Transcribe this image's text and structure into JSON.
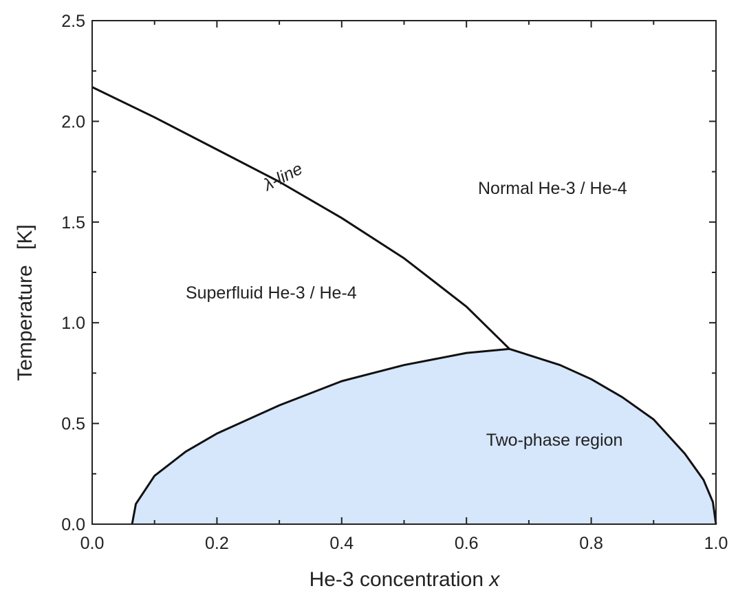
{
  "chart_data": {
    "type": "line",
    "xlabel": "He-3 concentration",
    "xlabel_var": "x",
    "ylabel": "Temperature",
    "ylabel_unit": "[K]",
    "xlim": [
      0.0,
      1.0
    ],
    "ylim": [
      0.0,
      2.5
    ],
    "x_ticks": [
      "0.0",
      "0.2",
      "0.4",
      "0.6",
      "0.8",
      "1.0"
    ],
    "y_ticks": [
      "0.0",
      "0.5",
      "1.0",
      "1.5",
      "2.0",
      "2.5"
    ],
    "grid": false,
    "colors": {
      "two_phase_fill": "#d6e6fb",
      "line": "#111111"
    },
    "series": [
      {
        "name": "λ-line",
        "x": [
          0.0,
          0.1,
          0.2,
          0.3,
          0.4,
          0.5,
          0.6,
          0.669
        ],
        "y": [
          2.17,
          2.02,
          1.86,
          1.7,
          1.52,
          1.32,
          1.08,
          0.87
        ]
      },
      {
        "name": "Two-phase region",
        "x": [
          0.064,
          0.07,
          0.1,
          0.15,
          0.2,
          0.3,
          0.4,
          0.5,
          0.6,
          0.669,
          0.75,
          0.8,
          0.85,
          0.9,
          0.95,
          0.98,
          0.995,
          1.0
        ],
        "y": [
          0.0,
          0.1,
          0.24,
          0.36,
          0.45,
          0.59,
          0.71,
          0.79,
          0.85,
          0.87,
          0.79,
          0.72,
          0.63,
          0.52,
          0.35,
          0.22,
          0.11,
          0.0
        ]
      }
    ],
    "annotations": [
      {
        "text": "λ-line",
        "x": 0.31,
        "y": 1.7,
        "rotation": -27
      },
      {
        "text": "Normal He-3 / He-4",
        "x": 0.738,
        "y": 1.64
      },
      {
        "text": "Superfluid He-3 / He-4",
        "x": 0.287,
        "y": 1.12
      },
      {
        "text": "Two-phase region",
        "x": 0.741,
        "y": 0.39
      }
    ]
  }
}
